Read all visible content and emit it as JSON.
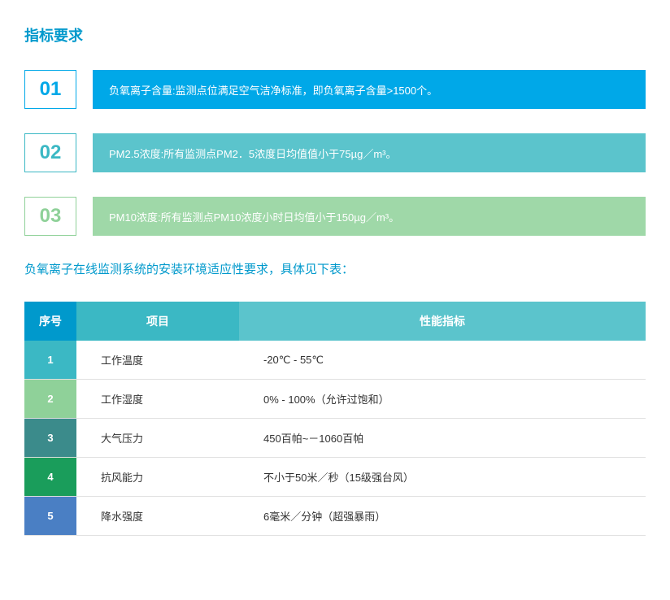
{
  "section_title": "指标要求",
  "title_color": "#0099cc",
  "subtitle": "负氧离子在线监测系统的安装环境适应性要求，具体见下表：",
  "subtitle_color": "#0099cc",
  "requirements": [
    {
      "num": "01",
      "text": "负氧离子含量:监测点位满足空气洁净标准，即负氧离子含量>1500个。",
      "num_color": "#00a8e8",
      "num_border": "#00a8e8",
      "bar_color": "#00a8e8"
    },
    {
      "num": "02",
      "text": "PM2.5浓度:所有监测点PM2．5浓度日均值值小于75µg／m³。",
      "num_color": "#3bb8c4",
      "num_border": "#3bb8c4",
      "bar_color": "#5bc4cc"
    },
    {
      "num": "03",
      "text": "PM10浓度:所有监测点PM10浓度小时日均值小于150µg／m³。",
      "num_color": "#8fd199",
      "num_border": "#8fd199",
      "bar_color": "#9fd8a8"
    }
  ],
  "table": {
    "headers": {
      "seq": "序号",
      "project": "项目",
      "perf": "性能指标"
    },
    "header_colors": {
      "seq": "#0099cc",
      "project": "#3bb8c4",
      "perf": "#5bc4cc"
    },
    "rows": [
      {
        "num": "1",
        "num_bg": "#3bb8c4",
        "project": "工作温度",
        "perf": "-20℃ - 55℃"
      },
      {
        "num": "2",
        "num_bg": "#8fd199",
        "project": "工作湿度",
        "perf": "0% - 100%（允许过饱和）"
      },
      {
        "num": "3",
        "num_bg": "#3b8b8b",
        "project": "大气压力",
        "perf": "450百帕~－1060百帕"
      },
      {
        "num": "4",
        "num_bg": "#1a9d5b",
        "project": "抗风能力",
        "perf": "不小于50米／秒（15级强台风）"
      },
      {
        "num": "5",
        "num_bg": "#4a7fc4",
        "project": "降水强度",
        "perf": "6毫米／分钟（超强暴雨）"
      }
    ],
    "text_color": "#333333"
  }
}
